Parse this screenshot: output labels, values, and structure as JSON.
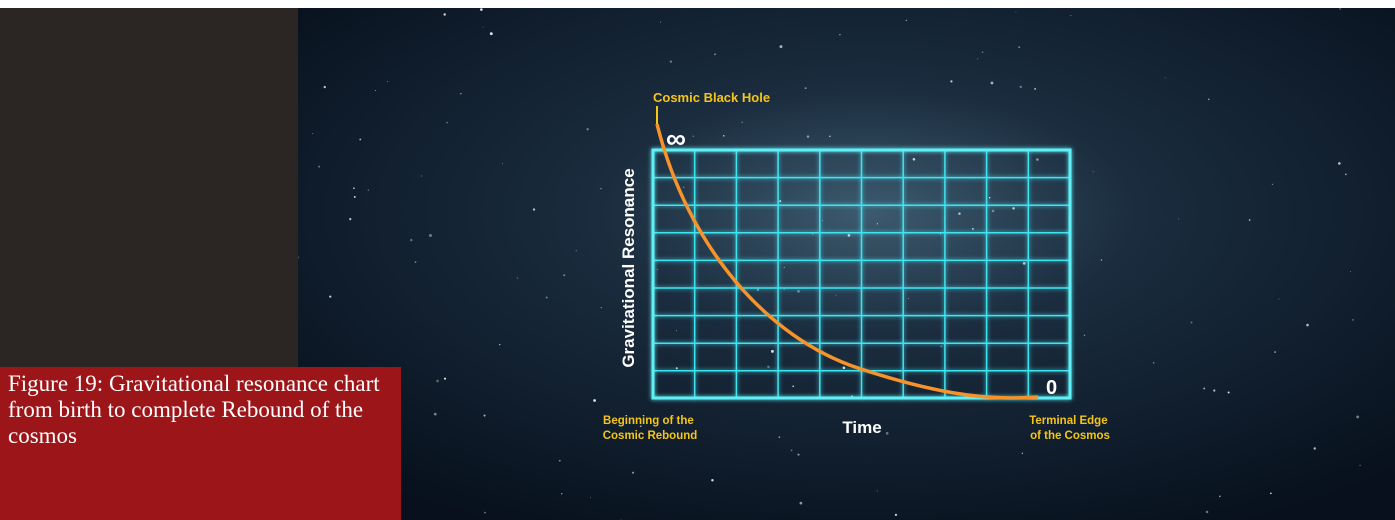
{
  "illustration": {
    "top_label": "Cosmic Black Hole",
    "max_label": "∞",
    "min_label": "0",
    "y_axis_label": "Gravitational Resonance",
    "x_axis_label": "Time",
    "start_label": [
      "Beginning of the",
      "Cosmic Rebound"
    ],
    "end_label": [
      "Terminal Edge",
      "of the Cosmos"
    ]
  },
  "caption": "Figure 19: Gravitational resonance chart from birth to complete Rebound of the cosmos"
}
